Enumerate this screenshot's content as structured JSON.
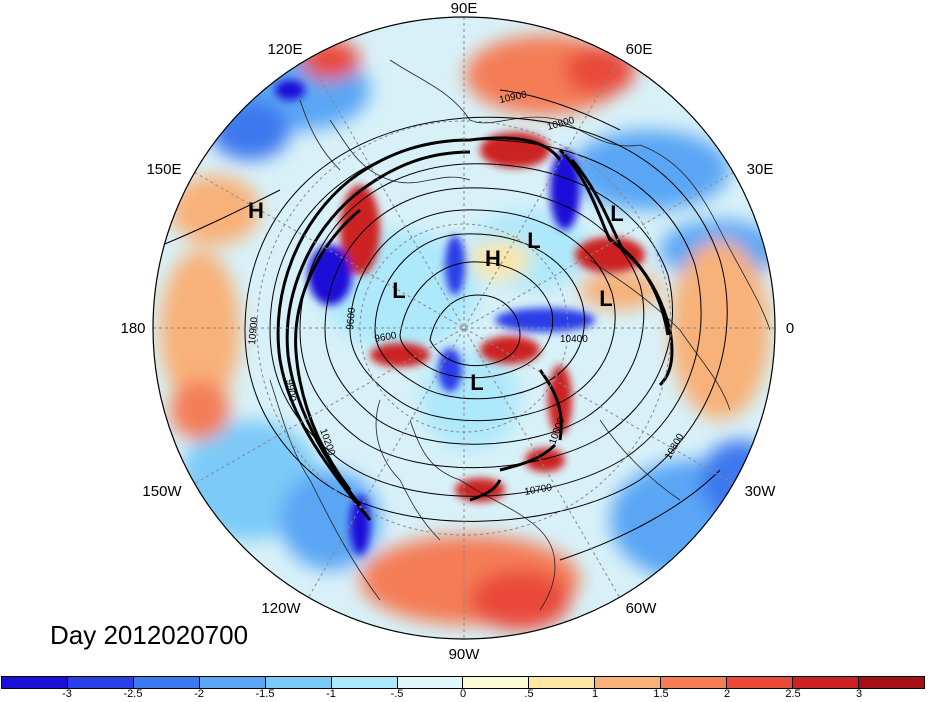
{
  "map": {
    "projection": "north-polar-stereographic",
    "longitude_labels": [
      "90E",
      "60E",
      "30E",
      "0",
      "30W",
      "60W",
      "90W",
      "120W",
      "150W",
      "180",
      "150E",
      "120E"
    ],
    "pressure_centers": [
      "H",
      "H",
      "L",
      "L",
      "L",
      "L",
      "L"
    ],
    "contour_labels": [
      "10900",
      "10800",
      "10900",
      "9600",
      "9600",
      "10700",
      "10800",
      "10400",
      "10200",
      "10000",
      "9900"
    ]
  },
  "title": "Day 2012020700",
  "colorbar": {
    "colors": [
      "#1a10d8",
      "#2a3ee8",
      "#3c78ee",
      "#5aa6f5",
      "#7ccaf8",
      "#aee8fb",
      "#dff6fb",
      "#fdfbd7",
      "#fde6a6",
      "#f8b178",
      "#f47d56",
      "#ea4a3a",
      "#cc2224",
      "#a51018"
    ],
    "tick_labels": [
      "-3",
      "-2.5",
      "-2",
      "-1.5",
      "-1",
      "-.5",
      "0",
      ".5",
      "1",
      "1.5",
      "2",
      "2.5",
      "3"
    ]
  }
}
